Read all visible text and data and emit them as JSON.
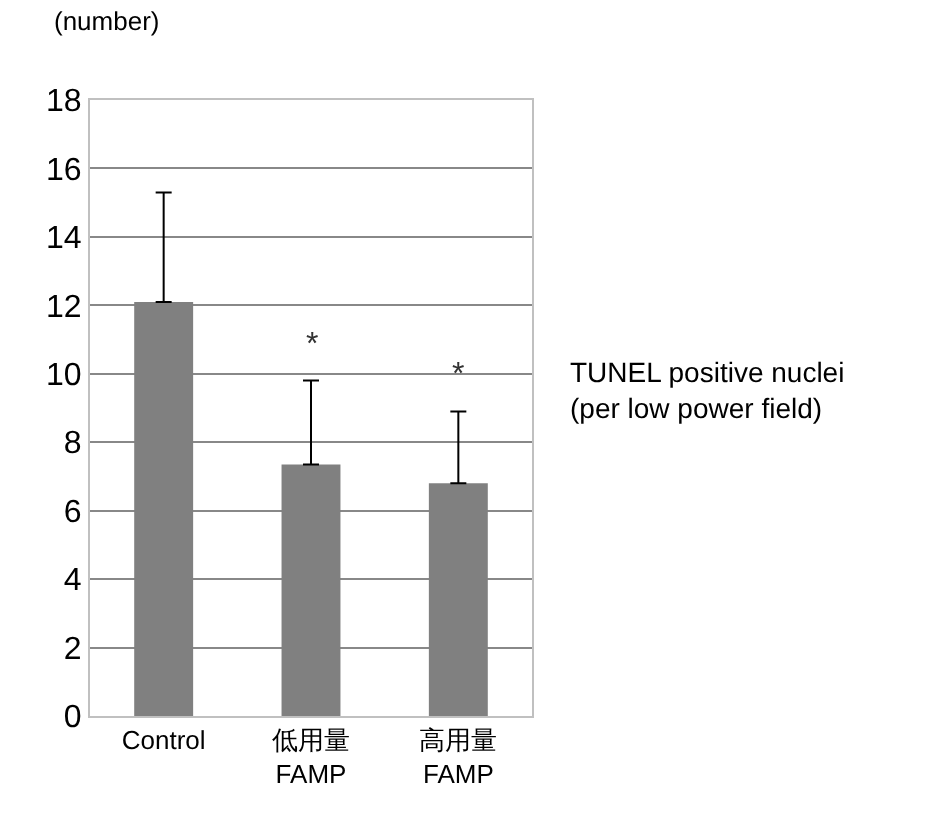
{
  "chart_data": {
    "type": "bar",
    "ylabel": "(number)",
    "categories": [
      "Control",
      "低用量\nFAMP",
      "高用量\nFAMP"
    ],
    "values": [
      12.1,
      7.35,
      6.8
    ],
    "color": "#808080",
    "errors": [
      [
        12.1,
        15.3
      ],
      [
        7.35,
        9.8
      ],
      [
        6.8,
        8.9
      ]
    ],
    "ylim": [
      0,
      18
    ],
    "yticks": [
      0,
      2,
      4,
      6,
      8,
      10,
      12,
      14,
      16,
      18
    ],
    "grid": "y",
    "legend": false,
    "annotations": [
      "*",
      "*",
      "TUNEL positive nuclei\n(per low power field)"
    ]
  }
}
